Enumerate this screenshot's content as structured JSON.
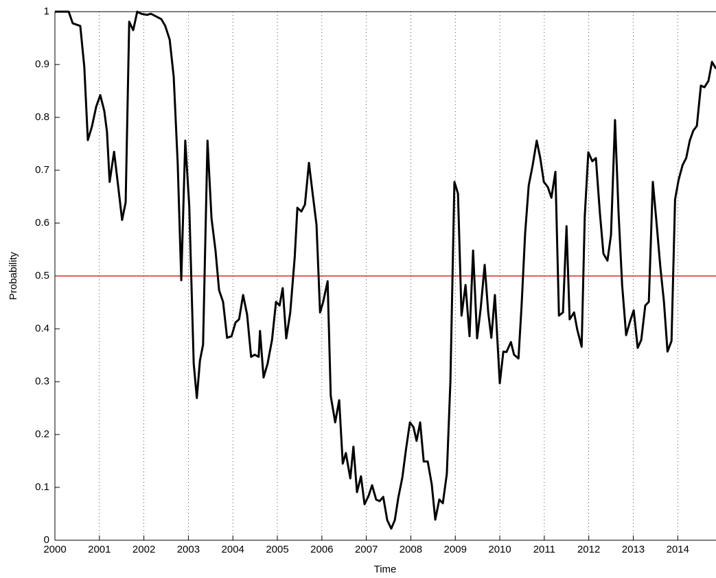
{
  "chart_data": {
    "type": "line",
    "x_label": "Time",
    "y_label": "Probability",
    "xlim": [
      2000,
      2014.86
    ],
    "ylim": [
      0,
      1
    ],
    "xticks": [
      2000,
      2001,
      2002,
      2003,
      2004,
      2005,
      2006,
      2007,
      2008,
      2009,
      2010,
      2011,
      2012,
      2013,
      2014
    ],
    "yticks": [
      0,
      0.1,
      0.2,
      0.3,
      0.4,
      0.5,
      0.6,
      0.7,
      0.8,
      0.9,
      1
    ],
    "x_grid": true,
    "reference_line": {
      "value": 0.5,
      "color": "#d00000"
    },
    "series": [
      {
        "color": "#000000",
        "x": [
          2000.0,
          2000.31,
          2000.4,
          2000.57,
          2000.66,
          2000.74,
          2000.83,
          2000.93,
          2001.02,
          2001.11,
          2001.17,
          2001.23,
          2001.33,
          2001.42,
          2001.51,
          2001.59,
          2001.67,
          2001.76,
          2001.85,
          2001.94,
          2002.07,
          2002.16,
          2002.39,
          2002.48,
          2002.58,
          2002.67,
          2002.76,
          2002.84,
          2002.93,
          2003.02,
          2003.12,
          2003.19,
          2003.26,
          2003.33,
          2003.43,
          2003.52,
          2003.61,
          2003.69,
          2003.78,
          2003.87,
          2003.97,
          2004.06,
          2004.14,
          2004.23,
          2004.32,
          2004.41,
          2004.49,
          2004.58,
          2004.61,
          2004.69,
          2004.78,
          2004.88,
          2004.97,
          2005.05,
          2005.12,
          2005.2,
          2005.29,
          2005.39,
          2005.45,
          2005.54,
          2005.62,
          2005.71,
          2005.79,
          2005.88,
          2005.96,
          2006.03,
          2006.13,
          2006.2,
          2006.3,
          2006.39,
          2006.47,
          2006.54,
          2006.64,
          2006.71,
          2006.79,
          2006.88,
          2006.96,
          2007.05,
          2007.13,
          2007.22,
          2007.3,
          2007.38,
          2007.47,
          2007.56,
          2007.64,
          2007.72,
          2007.81,
          2007.89,
          2007.98,
          2008.06,
          2008.13,
          2008.21,
          2008.29,
          2008.38,
          2008.47,
          2008.55,
          2008.64,
          2008.72,
          2008.81,
          2008.89,
          2008.98,
          2009.06,
          2009.14,
          2009.23,
          2009.32,
          2009.4,
          2009.49,
          2009.57,
          2009.66,
          2009.74,
          2009.81,
          2009.89,
          2010.0,
          2010.08,
          2010.15,
          2010.25,
          2010.32,
          2010.42,
          2010.49,
          2010.57,
          2010.65,
          2010.74,
          2010.83,
          2010.91,
          2010.99,
          2011.08,
          2011.16,
          2011.25,
          2011.33,
          2011.42,
          2011.5,
          2011.57,
          2011.67,
          2011.74,
          2011.84,
          2011.91,
          2011.99,
          2012.08,
          2012.16,
          2012.25,
          2012.33,
          2012.42,
          2012.5,
          2012.59,
          2012.67,
          2012.75,
          2012.84,
          2012.92,
          2013.01,
          2013.1,
          2013.18,
          2013.27,
          2013.35,
          2013.44,
          2013.52,
          2013.61,
          2013.69,
          2013.77,
          2013.86,
          2013.94,
          2014.02,
          2014.11,
          2014.19,
          2014.27,
          2014.35,
          2014.43,
          2014.52,
          2014.6,
          2014.69,
          2014.77,
          2014.86
        ],
        "values": [
          1.0,
          1.0,
          0.978,
          0.973,
          0.896,
          0.757,
          0.782,
          0.821,
          0.842,
          0.812,
          0.773,
          0.678,
          0.735,
          0.671,
          0.606,
          0.639,
          0.981,
          0.965,
          1.0,
          0.996,
          0.994,
          0.996,
          0.986,
          0.973,
          0.947,
          0.877,
          0.713,
          0.492,
          0.756,
          0.632,
          0.334,
          0.269,
          0.34,
          0.37,
          0.756,
          0.609,
          0.548,
          0.473,
          0.451,
          0.383,
          0.386,
          0.412,
          0.418,
          0.464,
          0.427,
          0.347,
          0.351,
          0.347,
          0.396,
          0.308,
          0.334,
          0.379,
          0.451,
          0.444,
          0.477,
          0.382,
          0.431,
          0.535,
          0.629,
          0.622,
          0.635,
          0.714,
          0.658,
          0.597,
          0.431,
          0.451,
          0.49,
          0.273,
          0.223,
          0.265,
          0.145,
          0.165,
          0.117,
          0.177,
          0.091,
          0.121,
          0.068,
          0.084,
          0.104,
          0.077,
          0.074,
          0.082,
          0.038,
          0.022,
          0.038,
          0.081,
          0.119,
          0.171,
          0.223,
          0.214,
          0.188,
          0.223,
          0.149,
          0.149,
          0.106,
          0.039,
          0.077,
          0.07,
          0.126,
          0.301,
          0.678,
          0.656,
          0.425,
          0.483,
          0.386,
          0.548,
          0.382,
          0.438,
          0.521,
          0.431,
          0.383,
          0.464,
          0.297,
          0.357,
          0.356,
          0.375,
          0.351,
          0.344,
          0.444,
          0.581,
          0.671,
          0.71,
          0.756,
          0.723,
          0.678,
          0.668,
          0.648,
          0.697,
          0.425,
          0.431,
          0.594,
          0.418,
          0.431,
          0.399,
          0.366,
          0.613,
          0.734,
          0.717,
          0.723,
          0.619,
          0.542,
          0.529,
          0.578,
          0.795,
          0.619,
          0.483,
          0.388,
          0.412,
          0.435,
          0.364,
          0.379,
          0.444,
          0.451,
          0.678,
          0.604,
          0.516,
          0.451,
          0.357,
          0.377,
          0.645,
          0.682,
          0.71,
          0.723,
          0.756,
          0.775,
          0.784,
          0.86,
          0.857,
          0.869,
          0.905,
          0.892
        ]
      }
    ]
  }
}
